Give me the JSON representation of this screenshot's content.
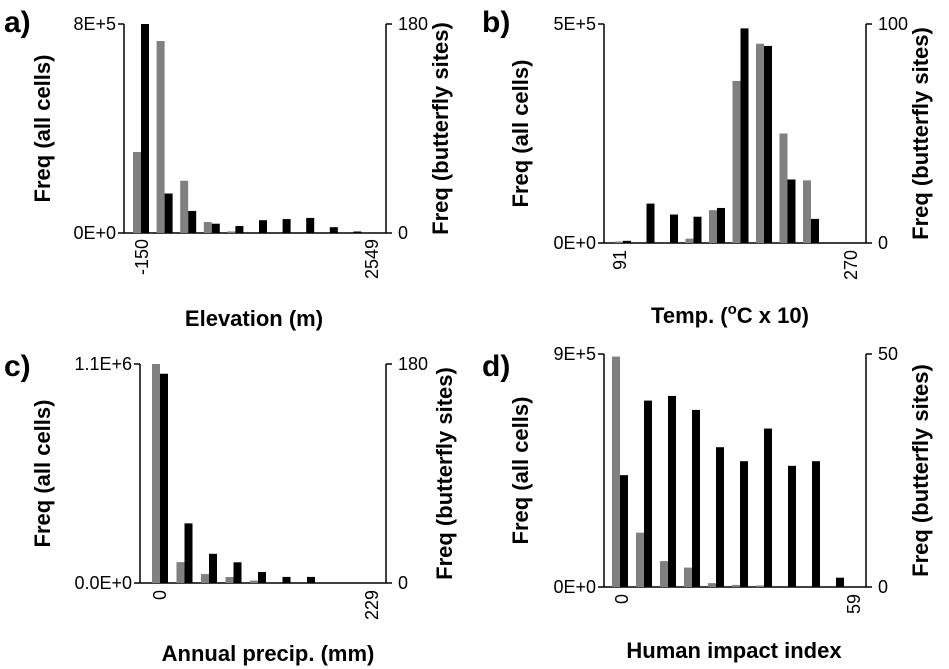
{
  "colors": {
    "all_cells": "#808080",
    "butterfly_sites": "#000000",
    "axis": "#000000"
  },
  "chart_data": [
    {
      "type": "bar",
      "panel_label": "a)",
      "xlabel": "Elevation (m)",
      "ylabel": "Freq (all cells)",
      "y2label": "Freq (butterfly sites)",
      "x_tick_labels": [
        "-150",
        "2549"
      ],
      "y_tick_labels": [
        "0E+0",
        "8E+5"
      ],
      "y2_tick_labels": [
        "0",
        "180"
      ],
      "ylim": [
        0,
        800000
      ],
      "y2lim": [
        0,
        180
      ],
      "n_bins": 10,
      "series": [
        {
          "values": [
            310000,
            735000,
            200000,
            42000,
            6000,
            0,
            0,
            0,
            0,
            0
          ]
        },
        {
          "axis": "right",
          "values": [
            180,
            34,
            19,
            8,
            6,
            11,
            12,
            13,
            5,
            1
          ]
        }
      ]
    },
    {
      "type": "bar",
      "panel_label": "b)",
      "xlabel": "Temp. (",
      "xlabel_sup": "o",
      "xlabel_rest": "C x 10)",
      "ylabel": "Freq (all cells)",
      "y2label": "Freq (butterfly sites)",
      "x_tick_labels": [
        "91",
        "270"
      ],
      "y_tick_labels": [
        "0E+0",
        "5E+5"
      ],
      "y2_tick_labels": [
        "0",
        "100"
      ],
      "ylim": [
        0,
        500000
      ],
      "y2lim": [
        0,
        100
      ],
      "n_bins": 10,
      "series": [
        {
          "values": [
            2000,
            0,
            0,
            10000,
            75000,
            370000,
            455000,
            250000,
            143000,
            0
          ]
        },
        {
          "axis": "right",
          "values": [
            1,
            18,
            13,
            12,
            16,
            98,
            90,
            29,
            11,
            0
          ]
        }
      ]
    },
    {
      "type": "bar",
      "panel_label": "c)",
      "xlabel": "Annual precip. (mm)",
      "ylabel": "Freq (all cells)",
      "y2label": "Freq (butterfly sites)",
      "x_tick_labels": [
        "0",
        "229"
      ],
      "y_tick_labels": [
        "0.0E+0",
        "1.1E+6"
      ],
      "y2_tick_labels": [
        "0",
        "180"
      ],
      "ylim": [
        0,
        1100000
      ],
      "y2lim": [
        0,
        180
      ],
      "n_bins": 9,
      "series": [
        {
          "values": [
            1100000,
            105000,
            45000,
            30000,
            12000,
            0,
            0,
            0,
            0
          ]
        },
        {
          "axis": "right",
          "values": [
            172,
            49,
            24,
            17,
            9,
            5,
            5,
            0,
            0
          ]
        }
      ]
    },
    {
      "type": "bar",
      "panel_label": "d)",
      "xlabel": "Human impact index",
      "ylabel": "Freq (all cells)",
      "y2label": "Freq (butterfly sites)",
      "x_tick_labels": [
        "0",
        "59"
      ],
      "y_tick_labels": [
        "0E+0",
        "9E+5"
      ],
      "y2_tick_labels": [
        "0",
        "50"
      ],
      "ylim": [
        0,
        900000
      ],
      "y2lim": [
        0,
        50
      ],
      "n_bins": 10,
      "series": [
        {
          "values": [
            890000,
            210000,
            100000,
            75000,
            15000,
            8000,
            5000,
            0,
            0,
            0
          ]
        },
        {
          "axis": "right",
          "values": [
            24,
            40,
            41,
            38,
            30,
            27,
            34,
            26,
            27,
            2
          ]
        }
      ]
    }
  ]
}
